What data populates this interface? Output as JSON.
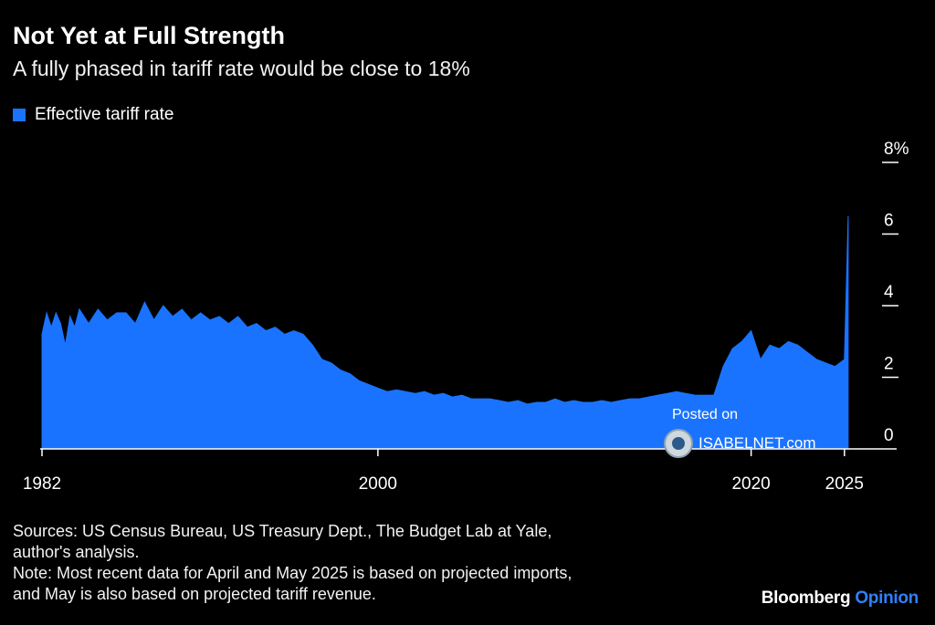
{
  "title": "Not Yet at Full Strength",
  "subtitle": "A fully phased in tariff rate would be close to 18%",
  "colors": {
    "series": "#1a73ff",
    "background": "#000000",
    "axis": "#ffffff",
    "brand_accent": "#2f80ff"
  },
  "watermark": {
    "line1": "Posted on",
    "site": "ISABELNET.com"
  },
  "footer": {
    "sources_line1": "Sources: US Census Bureau, US Treasury Dept., The Budget Lab at Yale,",
    "sources_line2": "author's analysis.",
    "note_line1": "Note: Most recent data for April and May 2025 is based on projected imports,",
    "note_line2": "and May is also based on projected tariff revenue."
  },
  "brand": {
    "name": "Bloomberg",
    "section": "Opinion"
  },
  "chart_data": {
    "type": "area",
    "legend_position": "top-left",
    "grid": false,
    "xlim": [
      1982,
      2025.4
    ],
    "ylim": [
      0,
      8
    ],
    "x_ticks": [
      {
        "value": 1982,
        "label": "1982"
      },
      {
        "value": 2000,
        "label": "2000"
      },
      {
        "value": 2020,
        "label": "2020"
      },
      {
        "value": 2025,
        "label": "2025"
      }
    ],
    "y_ticks": [
      {
        "value": 0,
        "label": "0"
      },
      {
        "value": 2,
        "label": "2"
      },
      {
        "value": 4,
        "label": "4"
      },
      {
        "value": 6,
        "label": "6"
      },
      {
        "value": 8,
        "label": "8%"
      }
    ],
    "series": [
      {
        "name": "Effective tariff rate",
        "points": [
          [
            1982.0,
            3.2
          ],
          [
            1982.25,
            3.8
          ],
          [
            1982.5,
            3.4
          ],
          [
            1982.75,
            3.8
          ],
          [
            1983.0,
            3.5
          ],
          [
            1983.25,
            2.9
          ],
          [
            1983.5,
            3.7
          ],
          [
            1983.75,
            3.4
          ],
          [
            1984.0,
            3.9
          ],
          [
            1984.5,
            3.5
          ],
          [
            1985.0,
            3.9
          ],
          [
            1985.5,
            3.6
          ],
          [
            1986.0,
            3.8
          ],
          [
            1986.5,
            3.8
          ],
          [
            1987.0,
            3.5
          ],
          [
            1987.5,
            4.1
          ],
          [
            1988.0,
            3.6
          ],
          [
            1988.5,
            4.0
          ],
          [
            1989.0,
            3.7
          ],
          [
            1989.5,
            3.9
          ],
          [
            1990.0,
            3.6
          ],
          [
            1990.5,
            3.8
          ],
          [
            1991.0,
            3.6
          ],
          [
            1991.5,
            3.7
          ],
          [
            1992.0,
            3.5
          ],
          [
            1992.5,
            3.7
          ],
          [
            1993.0,
            3.4
          ],
          [
            1993.5,
            3.5
          ],
          [
            1994.0,
            3.3
          ],
          [
            1994.5,
            3.4
          ],
          [
            1995.0,
            3.2
          ],
          [
            1995.5,
            3.3
          ],
          [
            1996.0,
            3.2
          ],
          [
            1996.5,
            2.9
          ],
          [
            1997.0,
            2.5
          ],
          [
            1997.5,
            2.4
          ],
          [
            1998.0,
            2.2
          ],
          [
            1998.5,
            2.1
          ],
          [
            1999.0,
            1.9
          ],
          [
            1999.5,
            1.8
          ],
          [
            2000.0,
            1.7
          ],
          [
            2000.5,
            1.6
          ],
          [
            2001.0,
            1.65
          ],
          [
            2001.5,
            1.6
          ],
          [
            2002.0,
            1.55
          ],
          [
            2002.5,
            1.6
          ],
          [
            2003.0,
            1.5
          ],
          [
            2003.5,
            1.55
          ],
          [
            2004.0,
            1.45
          ],
          [
            2004.5,
            1.5
          ],
          [
            2005.0,
            1.4
          ],
          [
            2005.5,
            1.4
          ],
          [
            2006.0,
            1.4
          ],
          [
            2006.5,
            1.35
          ],
          [
            2007.0,
            1.3
          ],
          [
            2007.5,
            1.35
          ],
          [
            2008.0,
            1.25
          ],
          [
            2008.5,
            1.3
          ],
          [
            2009.0,
            1.3
          ],
          [
            2009.5,
            1.4
          ],
          [
            2010.0,
            1.3
          ],
          [
            2010.5,
            1.35
          ],
          [
            2011.0,
            1.3
          ],
          [
            2011.5,
            1.3
          ],
          [
            2012.0,
            1.35
          ],
          [
            2012.5,
            1.3
          ],
          [
            2013.0,
            1.35
          ],
          [
            2013.5,
            1.4
          ],
          [
            2014.0,
            1.4
          ],
          [
            2014.5,
            1.45
          ],
          [
            2015.0,
            1.5
          ],
          [
            2015.5,
            1.55
          ],
          [
            2016.0,
            1.6
          ],
          [
            2016.5,
            1.55
          ],
          [
            2017.0,
            1.5
          ],
          [
            2017.5,
            1.5
          ],
          [
            2018.0,
            1.5
          ],
          [
            2018.5,
            2.3
          ],
          [
            2019.0,
            2.8
          ],
          [
            2019.5,
            3.0
          ],
          [
            2020.0,
            3.3
          ],
          [
            2020.5,
            2.5
          ],
          [
            2021.0,
            2.9
          ],
          [
            2021.5,
            2.8
          ],
          [
            2022.0,
            3.0
          ],
          [
            2022.5,
            2.9
          ],
          [
            2023.0,
            2.7
          ],
          [
            2023.5,
            2.5
          ],
          [
            2024.0,
            2.4
          ],
          [
            2024.5,
            2.3
          ],
          [
            2024.75,
            2.4
          ],
          [
            2025.0,
            2.5
          ],
          [
            2025.2,
            6.5
          ]
        ]
      }
    ]
  }
}
